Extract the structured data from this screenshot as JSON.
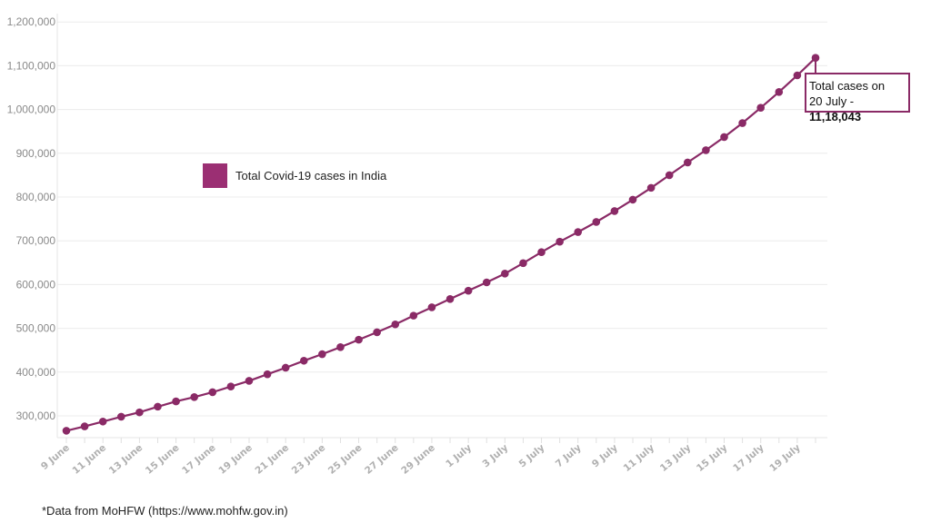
{
  "chart_data": {
    "type": "line",
    "title": "",
    "xlabel": "",
    "ylabel": "",
    "ylim": [
      252000,
      1200000
    ],
    "grid": true,
    "legend_position": "inside-upper-left",
    "series_color": "#8a2a66",
    "categories": [
      "9 June",
      "10 June",
      "11 June",
      "12 June",
      "13 June",
      "14 June",
      "15 June",
      "16 June",
      "17 June",
      "18 June",
      "19 June",
      "20 June",
      "21 June",
      "22 June",
      "23 June",
      "24 June",
      "25 June",
      "26 June",
      "27 June",
      "28 June",
      "29 June",
      "30 June",
      "1 July",
      "2 July",
      "3 July",
      "4 July",
      "5 July",
      "6 July",
      "7 July",
      "8 July",
      "9 July",
      "10 July",
      "11 July",
      "12 July",
      "13 July",
      "14 July",
      "15 July",
      "16 July",
      "17 July",
      "18 July",
      "19 July",
      "20 July"
    ],
    "series": [
      {
        "name": "Total Covid-19 cases in India",
        "values": [
          266000,
          276000,
          287000,
          298000,
          308000,
          321000,
          333000,
          343000,
          354000,
          367000,
          380000,
          395000,
          410000,
          426000,
          441000,
          457000,
          474000,
          491000,
          509000,
          529000,
          548000,
          567000,
          586000,
          605000,
          625000,
          649000,
          674000,
          698000,
          720000,
          743000,
          768000,
          794000,
          821000,
          850000,
          879000,
          907000,
          937000,
          969000,
          1004000,
          1040000,
          1078000,
          1118043
        ]
      }
    ],
    "y_ticks": [
      "1,200,000",
      "1,100,000",
      "1,000,000",
      "900,000",
      "800,000",
      "700,000",
      "600,000",
      "500,000",
      "400,000",
      "300,000"
    ],
    "x_tick_labels": [
      "9 June",
      "11 June",
      "13 June",
      "15 June",
      "17 June",
      "19 June",
      "21 June",
      "23 June",
      "25 June",
      "27 June",
      "29 June",
      "1 July",
      "3 July",
      "5 July",
      "7 July",
      "9 July",
      "11 July",
      "13 July",
      "15 July",
      "17 July",
      "19 July"
    ],
    "annotations": [
      {
        "text_line1": "Total cases on",
        "text_line2_prefix": "20 July - ",
        "text_line2_bold": "11,18,043",
        "target": "20 July"
      }
    ]
  },
  "legend": {
    "label": "Total Covid-19 cases in India",
    "color": "#9b2f73"
  },
  "callout": {
    "line1": "Total cases on",
    "line2_prefix": "20 July - ",
    "line2_value": "11,18,043"
  },
  "footnote": "*Data from MoHFW (https://www.mohfw.gov.in)"
}
